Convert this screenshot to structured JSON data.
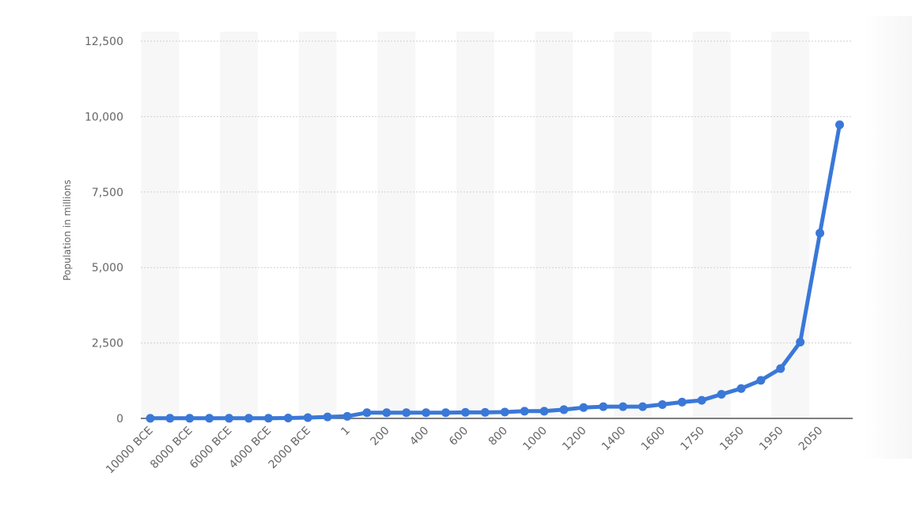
{
  "chart_data": {
    "type": "line",
    "title": "",
    "xlabel": "",
    "ylabel": "Population in millions",
    "ylim": [
      0,
      12500
    ],
    "yticks": [
      "0",
      "2,500",
      "5,000",
      "7,500",
      "10,000",
      "12,500"
    ],
    "ytick_values": [
      0,
      2500,
      5000,
      7500,
      10000,
      12500
    ],
    "grid": true,
    "categories": [
      "10000 BCE",
      "9000 BCE",
      "8000 BCE",
      "7000 BCE",
      "6000 BCE",
      "5000 BCE",
      "4000 BCE",
      "3000 BCE",
      "2000 BCE",
      "1000 BCE",
      "1",
      "100",
      "200",
      "300",
      "400",
      "500",
      "600",
      "700",
      "800",
      "900",
      "1000",
      "1100",
      "1200",
      "1300",
      "1400",
      "1500",
      "1600",
      "1700",
      "1750",
      "1800",
      "1850",
      "1900",
      "1950",
      "2000",
      "2050",
      "2100"
    ],
    "x_tick_labels": [
      "10000 BCE",
      "8000 BCE",
      "6000 BCE",
      "4000 BCE",
      "2000 BCE",
      "1",
      "200",
      "400",
      "600",
      "800",
      "1000",
      "1200",
      "1400",
      "1600",
      "1750",
      "1850",
      "1950",
      "2050"
    ],
    "x_tick_indices": [
      0,
      2,
      4,
      6,
      8,
      10,
      12,
      14,
      16,
      18,
      20,
      22,
      24,
      26,
      28,
      30,
      32,
      34
    ],
    "series": [
      {
        "name": "",
        "color": "#3a78d8",
        "values": [
          4,
          5,
          5,
          5,
          5,
          5,
          7,
          14,
          27,
          50,
          70,
          190,
          190,
          190,
          190,
          190,
          200,
          200,
          210,
          240,
          240,
          290,
          360,
          390,
          390,
          390,
          460,
          540,
          600,
          800,
          990,
          1260,
          1650,
          2530,
          6140,
          9730
        ]
      }
    ]
  }
}
